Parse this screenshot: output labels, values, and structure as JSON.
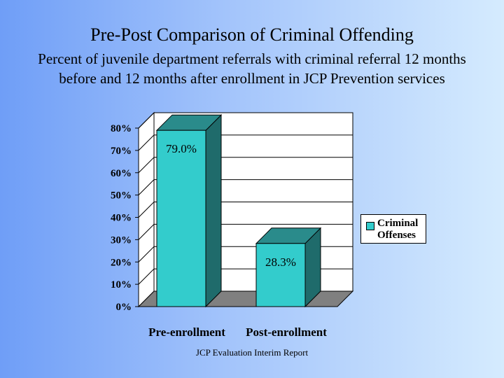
{
  "slide": {
    "title": "Pre-Post Comparison of Criminal Offending",
    "subtitle": "Percent of juvenile department referrals with criminal referral 12 months before and 12 months after enrollment in JCP Prevention services",
    "footer": "JCP Evaluation Interim Report"
  },
  "chart_data": {
    "type": "bar",
    "categories": [
      "Pre-enrollment",
      "Post-enrollment"
    ],
    "series": [
      {
        "name": "Criminal Offenses",
        "values": [
          79.0,
          28.3
        ],
        "color": "#33cccc"
      }
    ],
    "data_labels": [
      "79.0%",
      "28.3%"
    ],
    "y_ticks": [
      "0%",
      "10%",
      "20%",
      "30%",
      "40%",
      "50%",
      "60%",
      "70%",
      "80%"
    ],
    "ylim": [
      0,
      80
    ],
    "grid": true,
    "legend_position": "right",
    "colors": {
      "bar_front": "#33cccc",
      "bar_side": "#1f6b6b",
      "bar_top": "#2a8b8b",
      "wall": "#ffffff",
      "floor": "#808080"
    }
  }
}
